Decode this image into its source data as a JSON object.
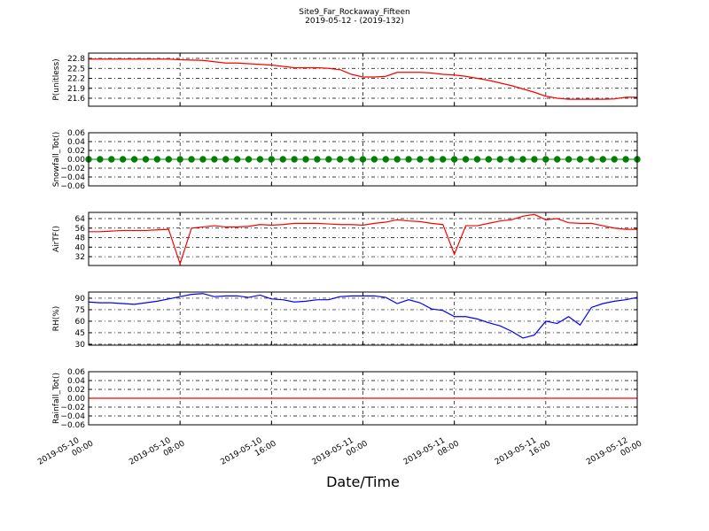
{
  "chart_data": [
    {
      "type": "line",
      "title": "Site9_Far_Rockaway_Fifteen",
      "subtitle": "2019-05-12 - (2019-132)",
      "ylabel": "P(unitless)",
      "color": "#ff0000",
      "ylim": [
        21.36,
        22.96
      ],
      "yticks": [
        21.6,
        21.9,
        22.2,
        22.5,
        22.8
      ],
      "x": [
        "2019-05-10 00:00",
        "2019-05-10 01:00",
        "2019-05-10 02:00",
        "2019-05-10 03:00",
        "2019-05-10 04:00",
        "2019-05-10 05:00",
        "2019-05-10 06:00",
        "2019-05-10 07:00",
        "2019-05-10 08:00",
        "2019-05-10 09:00",
        "2019-05-10 10:00",
        "2019-05-10 11:00",
        "2019-05-10 12:00",
        "2019-05-10 13:00",
        "2019-05-10 14:00",
        "2019-05-10 15:00",
        "2019-05-10 16:00",
        "2019-05-10 17:00",
        "2019-05-10 18:00",
        "2019-05-10 19:00",
        "2019-05-10 20:00",
        "2019-05-10 21:00",
        "2019-05-10 22:00",
        "2019-05-10 23:00",
        "2019-05-11 00:00",
        "2019-05-11 01:00",
        "2019-05-11 02:00",
        "2019-05-11 03:00",
        "2019-05-11 04:00",
        "2019-05-11 05:00",
        "2019-05-11 06:00",
        "2019-05-11 07:00",
        "2019-05-11 08:00",
        "2019-05-11 09:00",
        "2019-05-11 10:00",
        "2019-05-11 11:00",
        "2019-05-11 12:00",
        "2019-05-11 13:00",
        "2019-05-11 14:00",
        "2019-05-11 15:00",
        "2019-05-11 16:00",
        "2019-05-11 17:00",
        "2019-05-11 18:00",
        "2019-05-11 19:00",
        "2019-05-11 20:00",
        "2019-05-11 21:00",
        "2019-05-11 22:00",
        "2019-05-11 23:00",
        "2019-05-12 00:00"
      ],
      "values": [
        22.78,
        22.78,
        22.78,
        22.78,
        22.78,
        22.78,
        22.78,
        22.78,
        22.76,
        22.75,
        22.74,
        22.7,
        22.66,
        22.66,
        22.64,
        22.62,
        22.6,
        22.56,
        22.52,
        22.52,
        22.52,
        22.5,
        22.46,
        22.32,
        22.24,
        22.24,
        22.26,
        22.38,
        22.38,
        22.38,
        22.36,
        22.32,
        22.3,
        22.26,
        22.2,
        22.14,
        22.06,
        21.98,
        21.88,
        21.78,
        21.66,
        21.6,
        21.57,
        21.57,
        21.57,
        21.57,
        21.58,
        21.63,
        21.63
      ]
    },
    {
      "type": "line",
      "ylabel": "Snowfall_Tot()",
      "color": "#008000",
      "marker": "o",
      "ylim": [
        -0.06,
        0.06
      ],
      "yticks": [
        {
          "value": -0.06,
          "label": "−0.06"
        },
        {
          "value": -0.04,
          "label": "−0.04"
        },
        {
          "value": -0.02,
          "label": "−0.02"
        },
        {
          "value": 0,
          "label": "0.00"
        },
        {
          "value": 0.02,
          "label": "0.02"
        },
        {
          "value": 0.04,
          "label": "0.04"
        },
        {
          "value": 0.06,
          "label": "0.06"
        }
      ],
      "x": [
        "2019-05-10 00:00",
        "2019-05-10 01:00",
        "2019-05-10 02:00",
        "2019-05-10 03:00",
        "2019-05-10 04:00",
        "2019-05-10 05:00",
        "2019-05-10 06:00",
        "2019-05-10 07:00",
        "2019-05-10 08:00",
        "2019-05-10 09:00",
        "2019-05-10 10:00",
        "2019-05-10 11:00",
        "2019-05-10 12:00",
        "2019-05-10 13:00",
        "2019-05-10 14:00",
        "2019-05-10 15:00",
        "2019-05-10 16:00",
        "2019-05-10 17:00",
        "2019-05-10 18:00",
        "2019-05-10 19:00",
        "2019-05-10 20:00",
        "2019-05-10 21:00",
        "2019-05-10 22:00",
        "2019-05-10 23:00",
        "2019-05-11 00:00",
        "2019-05-11 01:00",
        "2019-05-11 02:00",
        "2019-05-11 03:00",
        "2019-05-11 04:00",
        "2019-05-11 05:00",
        "2019-05-11 06:00",
        "2019-05-11 07:00",
        "2019-05-11 08:00",
        "2019-05-11 09:00",
        "2019-05-11 10:00",
        "2019-05-11 11:00",
        "2019-05-11 12:00",
        "2019-05-11 13:00",
        "2019-05-11 14:00",
        "2019-05-11 15:00",
        "2019-05-11 16:00",
        "2019-05-11 17:00",
        "2019-05-11 18:00",
        "2019-05-11 19:00",
        "2019-05-11 20:00",
        "2019-05-11 21:00",
        "2019-05-11 22:00",
        "2019-05-11 23:00",
        "2019-05-12 00:00"
      ],
      "values": [
        0,
        0,
        0,
        0,
        0,
        0,
        0,
        0,
        0,
        0,
        0,
        0,
        0,
        0,
        0,
        0,
        0,
        0,
        0,
        0,
        0,
        0,
        0,
        0,
        0,
        0,
        0,
        0,
        0,
        0,
        0,
        0,
        0,
        0,
        0,
        0,
        0,
        0,
        0,
        0,
        0,
        0,
        0,
        0,
        0,
        0,
        0,
        0,
        0
      ]
    },
    {
      "type": "line",
      "ylabel": "AirTF()",
      "color": "#ff0000",
      "ylim": [
        24.6,
        69.2
      ],
      "yticks": [
        32,
        40,
        48,
        56,
        64
      ],
      "x": [
        "2019-05-10 00:00",
        "2019-05-10 01:00",
        "2019-05-10 02:00",
        "2019-05-10 03:00",
        "2019-05-10 04:00",
        "2019-05-10 05:00",
        "2019-05-10 06:00",
        "2019-05-10 07:00",
        "2019-05-10 08:00",
        "2019-05-10 09:00",
        "2019-05-10 10:00",
        "2019-05-10 11:00",
        "2019-05-10 12:00",
        "2019-05-10 13:00",
        "2019-05-10 14:00",
        "2019-05-10 15:00",
        "2019-05-10 16:00",
        "2019-05-10 17:00",
        "2019-05-10 18:00",
        "2019-05-10 19:00",
        "2019-05-10 20:00",
        "2019-05-10 21:00",
        "2019-05-10 22:00",
        "2019-05-10 23:00",
        "2019-05-11 00:00",
        "2019-05-11 01:00",
        "2019-05-11 02:00",
        "2019-05-11 03:00",
        "2019-05-11 04:00",
        "2019-05-11 05:00",
        "2019-05-11 06:00",
        "2019-05-11 07:00",
        "2019-05-11 08:00",
        "2019-05-11 09:00",
        "2019-05-11 10:00",
        "2019-05-11 11:00",
        "2019-05-11 12:00",
        "2019-05-11 13:00",
        "2019-05-11 14:00",
        "2019-05-11 15:00",
        "2019-05-11 16:00",
        "2019-05-11 17:00",
        "2019-05-11 18:00",
        "2019-05-11 19:00",
        "2019-05-11 20:00",
        "2019-05-11 21:00",
        "2019-05-11 22:00",
        "2019-05-11 23:00",
        "2019-05-12 00:00"
      ],
      "values": [
        53,
        53,
        53.5,
        54,
        54,
        54,
        54.5,
        55,
        26,
        56,
        57,
        58,
        57,
        57,
        57.5,
        59,
        58.5,
        59,
        60,
        60,
        60,
        59.5,
        59,
        59,
        58.5,
        60,
        61,
        63,
        62,
        61.5,
        60,
        59,
        34,
        58,
        58,
        60,
        62,
        63,
        66,
        67.5,
        63,
        64,
        60.5,
        60,
        60,
        58,
        56,
        55,
        55
      ]
    },
    {
      "type": "line",
      "ylabel": "RH(%)",
      "color": "#0000ff",
      "ylim": [
        28.8,
        98
      ],
      "yticks": [
        30,
        45,
        60,
        75,
        90
      ],
      "x": [
        "2019-05-10 00:00",
        "2019-05-10 01:00",
        "2019-05-10 02:00",
        "2019-05-10 03:00",
        "2019-05-10 04:00",
        "2019-05-10 05:00",
        "2019-05-10 06:00",
        "2019-05-10 07:00",
        "2019-05-10 08:00",
        "2019-05-10 09:00",
        "2019-05-10 10:00",
        "2019-05-10 11:00",
        "2019-05-10 12:00",
        "2019-05-10 13:00",
        "2019-05-10 14:00",
        "2019-05-10 15:00",
        "2019-05-10 16:00",
        "2019-05-10 17:00",
        "2019-05-10 18:00",
        "2019-05-10 19:00",
        "2019-05-10 20:00",
        "2019-05-10 21:00",
        "2019-05-10 22:00",
        "2019-05-10 23:00",
        "2019-05-11 00:00",
        "2019-05-11 01:00",
        "2019-05-11 02:00",
        "2019-05-11 03:00",
        "2019-05-11 04:00",
        "2019-05-11 05:00",
        "2019-05-11 06:00",
        "2019-05-11 07:00",
        "2019-05-11 08:00",
        "2019-05-11 09:00",
        "2019-05-11 10:00",
        "2019-05-11 11:00",
        "2019-05-11 12:00",
        "2019-05-11 13:00",
        "2019-05-11 14:00",
        "2019-05-11 15:00",
        "2019-05-11 16:00",
        "2019-05-11 17:00",
        "2019-05-11 18:00",
        "2019-05-11 19:00",
        "2019-05-11 20:00",
        "2019-05-11 21:00",
        "2019-05-11 22:00",
        "2019-05-11 23:00",
        "2019-05-12 00:00"
      ],
      "values": [
        85,
        84,
        84,
        83,
        82,
        84,
        86,
        89,
        92,
        95,
        96,
        92,
        93,
        93,
        91,
        94,
        89,
        88,
        85,
        86,
        88,
        88,
        92,
        93,
        93,
        93,
        91,
        83,
        88,
        84,
        76,
        74,
        66,
        66,
        63,
        58,
        54,
        47,
        38,
        42,
        60,
        57,
        66,
        55,
        78,
        83,
        86,
        88,
        91
      ]
    },
    {
      "type": "line",
      "ylabel": "Rainfall_Tot()",
      "xlabel": "Date/Time",
      "color": "#ff0000",
      "ylim": [
        -0.06,
        0.06
      ],
      "yticks": [
        {
          "value": -0.06,
          "label": "−0.06"
        },
        {
          "value": -0.04,
          "label": "−0.04"
        },
        {
          "value": -0.02,
          "label": "−0.02"
        },
        {
          "value": 0,
          "label": "0.00"
        },
        {
          "value": 0.02,
          "label": "0.02"
        },
        {
          "value": 0.04,
          "label": "0.04"
        },
        {
          "value": 0.06,
          "label": "0.06"
        }
      ],
      "xlim": [
        "2019-05-10 00:00",
        "2019-05-12 00:00"
      ],
      "xticks": [
        {
          "value": "2019-05-10 00:00",
          "label": "2019-05-10\n00:00"
        },
        {
          "value": "2019-05-10 08:00",
          "label": "2019-05-10\n08:00"
        },
        {
          "value": "2019-05-10 16:00",
          "label": "2019-05-10\n16:00"
        },
        {
          "value": "2019-05-11 00:00",
          "label": "2019-05-11\n00:00"
        },
        {
          "value": "2019-05-11 08:00",
          "label": "2019-05-11\n08:00"
        },
        {
          "value": "2019-05-11 16:00",
          "label": "2019-05-11\n16:00"
        },
        {
          "value": "2019-05-12 00:00",
          "label": "2019-05-12\n00:00"
        }
      ],
      "x": [
        "2019-05-10 00:00",
        "2019-05-10 01:00",
        "2019-05-10 02:00",
        "2019-05-10 03:00",
        "2019-05-10 04:00",
        "2019-05-10 05:00",
        "2019-05-10 06:00",
        "2019-05-10 07:00",
        "2019-05-10 08:00",
        "2019-05-10 09:00",
        "2019-05-10 10:00",
        "2019-05-10 11:00",
        "2019-05-10 12:00",
        "2019-05-10 13:00",
        "2019-05-10 14:00",
        "2019-05-10 15:00",
        "2019-05-10 16:00",
        "2019-05-10 17:00",
        "2019-05-10 18:00",
        "2019-05-10 19:00",
        "2019-05-10 20:00",
        "2019-05-10 21:00",
        "2019-05-10 22:00",
        "2019-05-10 23:00",
        "2019-05-11 00:00",
        "2019-05-11 01:00",
        "2019-05-11 02:00",
        "2019-05-11 03:00",
        "2019-05-11 04:00",
        "2019-05-11 05:00",
        "2019-05-11 06:00",
        "2019-05-11 07:00",
        "2019-05-11 08:00",
        "2019-05-11 09:00",
        "2019-05-11 10:00",
        "2019-05-11 11:00",
        "2019-05-11 12:00",
        "2019-05-11 13:00",
        "2019-05-11 14:00",
        "2019-05-11 15:00",
        "2019-05-11 16:00",
        "2019-05-11 17:00",
        "2019-05-11 18:00",
        "2019-05-11 19:00",
        "2019-05-11 20:00",
        "2019-05-11 21:00",
        "2019-05-11 22:00",
        "2019-05-11 23:00",
        "2019-05-12 00:00"
      ],
      "values": [
        0,
        0,
        0,
        0,
        0,
        0,
        0,
        0,
        0,
        0,
        0,
        0,
        0,
        0,
        0,
        0,
        0,
        0,
        0,
        0,
        0,
        0,
        0,
        0,
        0,
        0,
        0,
        0,
        0,
        0,
        0,
        0,
        0,
        0,
        0,
        0,
        0,
        0,
        0,
        0,
        0,
        0,
        0,
        0,
        0,
        0,
        0,
        0,
        0
      ]
    }
  ]
}
